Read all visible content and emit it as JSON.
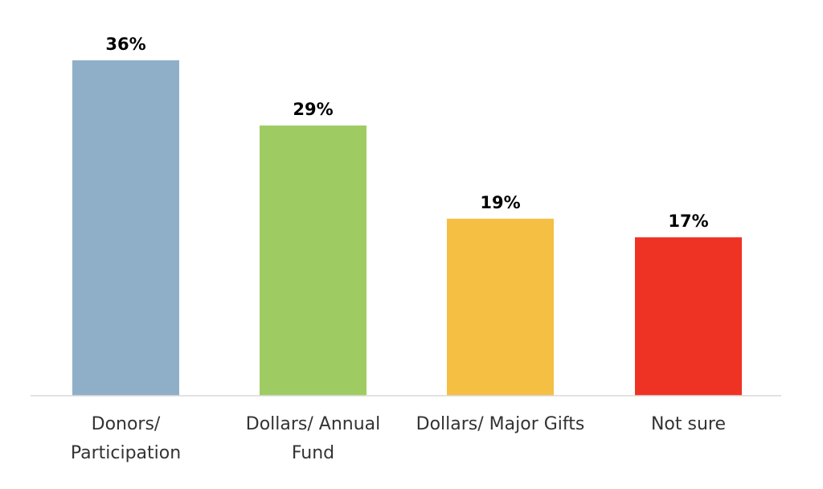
{
  "chart_data": {
    "type": "bar",
    "categories": [
      [
        "Donors/",
        "Participation"
      ],
      [
        "Dollars/ Annual",
        "Fund"
      ],
      [
        "Dollars/ Major Gifts"
      ],
      [
        "Not sure"
      ]
    ],
    "values": [
      36,
      29,
      19,
      17
    ],
    "value_labels": [
      "36%",
      "29%",
      "19%",
      "17%"
    ],
    "colors": [
      "#8FAFC8",
      "#9FCC62",
      "#F5BF44",
      "#EE3325"
    ],
    "ylim": [
      0,
      36
    ],
    "grid": false,
    "legend": "none"
  }
}
